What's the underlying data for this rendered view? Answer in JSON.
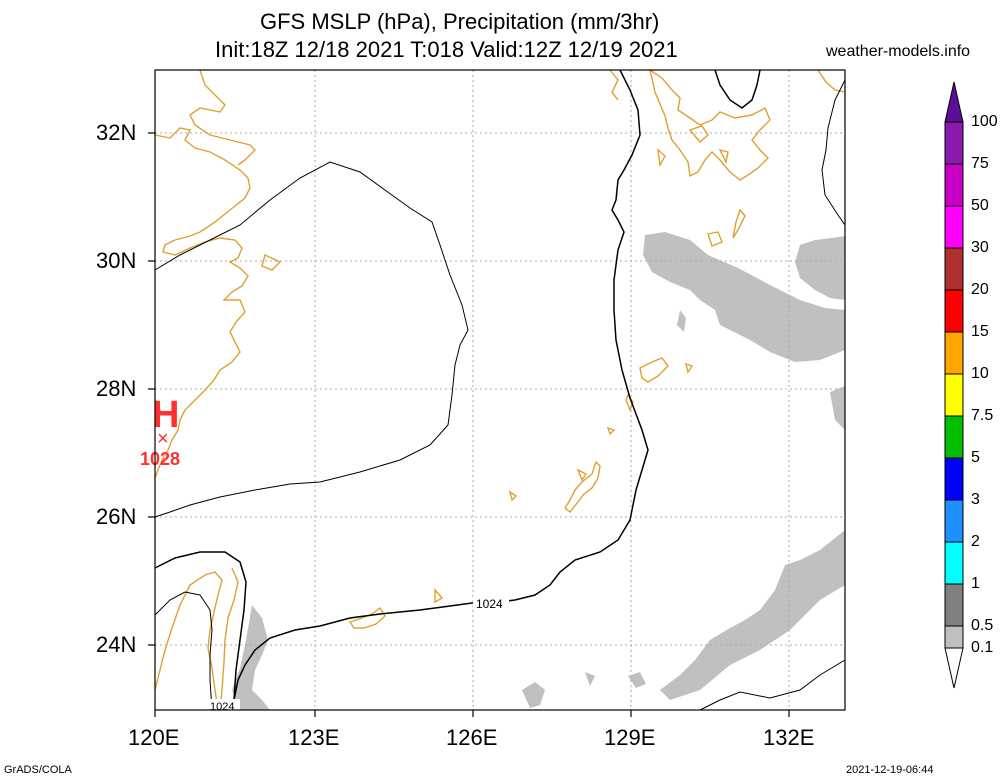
{
  "header": {
    "title_line1": "GFS MSLP (hPa), Precipitation (mm/3hr)",
    "title_line2": "Init:18Z 12/18 2021 T:018 Valid:12Z 12/19 2021",
    "site": "weather-models.info"
  },
  "map": {
    "lat_labels": [
      "32N",
      "30N",
      "28N",
      "26N",
      "24N"
    ],
    "lon_labels": [
      "120E",
      "123E",
      "126E",
      "129E",
      "132E"
    ],
    "isobar_labels": [
      "1024",
      "1024"
    ],
    "high": {
      "symbol": "H",
      "marker": "×",
      "value": "1028"
    },
    "colors": {
      "coastline": "#e0a030",
      "isobar": "#000000",
      "precip": "#c0c0c0",
      "high": "#ff3030"
    }
  },
  "colorbar": {
    "levels": [
      "100",
      "75",
      "50",
      "30",
      "20",
      "15",
      "10",
      "7.5",
      "5",
      "3",
      "2",
      "1",
      "0.5",
      "0.1"
    ],
    "colors": [
      "#5a0e9a",
      "#8a1ab0",
      "#c800c8",
      "#ff00ff",
      "#b03030",
      "#ff0000",
      "#ffa500",
      "#ffff00",
      "#00c000",
      "#0000ff",
      "#1e90ff",
      "#00ffff",
      "#808080",
      "#c0c0c0"
    ]
  },
  "footer": {
    "left": "GrADS/COLA",
    "right": "2021-12-19-06:44"
  }
}
